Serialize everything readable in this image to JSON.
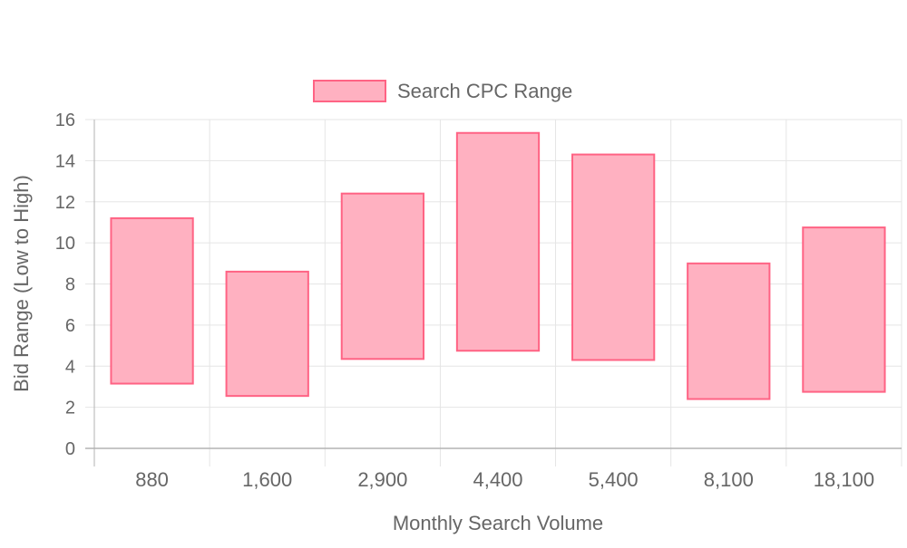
{
  "chart_data": {
    "type": "bar",
    "subtype": "floating-range",
    "legend": {
      "position": "top",
      "entries": [
        "Search CPC Range"
      ]
    },
    "xlabel": "Monthly Search Volume",
    "ylabel": "Bid Range (Low to High)",
    "categories": [
      "880",
      "1,600",
      "2,900",
      "4,400",
      "5,400",
      "8,100",
      "18,100"
    ],
    "series": [
      {
        "name": "Search CPC Range",
        "ranges": [
          [
            3.15,
            11.2
          ],
          [
            2.55,
            8.6
          ],
          [
            4.35,
            12.4
          ],
          [
            4.75,
            15.35
          ],
          [
            4.3,
            14.3
          ],
          [
            2.4,
            9.0
          ],
          [
            2.75,
            10.75
          ]
        ]
      }
    ],
    "ylim": [
      0,
      16
    ],
    "yticks": [
      0,
      2,
      4,
      6,
      8,
      10,
      12,
      14,
      16
    ],
    "grid": true,
    "colors": {
      "bar_fill": "#ffb1c1",
      "bar_border": "#ff6384",
      "grid": "#e5e5e5",
      "axis": "#b3b3b3",
      "text": "#666666"
    }
  }
}
